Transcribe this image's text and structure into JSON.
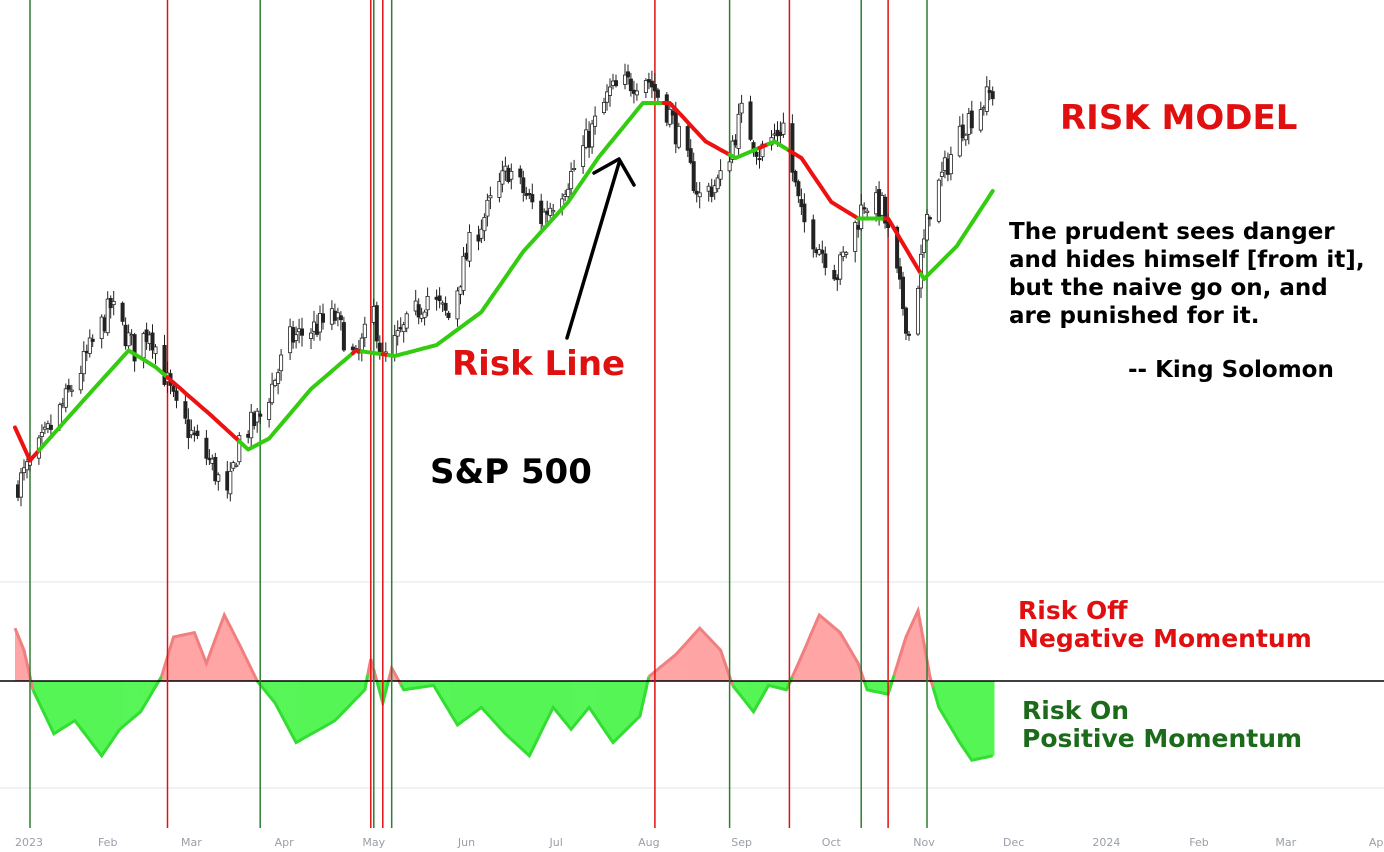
{
  "colors": {
    "signal_on": "#2e7d32",
    "signal_off": "#e01010",
    "risk_line_up": "#33cc11",
    "risk_line_down": "#ee1111",
    "momentum_positive": "#55f555",
    "momentum_negative": "#ffa5a5",
    "text_red": "#e01010",
    "text_green": "#1b6b1b",
    "text_black": "#000000"
  },
  "annotations": {
    "title": "RISK MODEL",
    "risk_line_label": "Risk Line",
    "index_label": "S&P 500",
    "quote_lines": [
      "The prudent sees danger",
      "and hides himself [from it],",
      "but the naive go on, and",
      "are punished for it."
    ],
    "quote_attribution": "-- King Solomon",
    "risk_off_lines": [
      "Risk Off",
      "Negative Momentum"
    ],
    "risk_on_lines": [
      "Risk On",
      "Positive Momentum"
    ]
  },
  "chart_data": {
    "type": "candlestick",
    "title": "RISK MODEL",
    "series_name": "S&P 500",
    "overlay_name": "Risk Line",
    "x_axis": {
      "start": "2023-01-01",
      "end": "2024-04-01",
      "tick_labels": [
        "2023",
        "Feb",
        "Mar",
        "Apr",
        "May",
        "Jun",
        "Jul",
        "Aug",
        "Sep",
        "Oct",
        "Nov",
        "Dec",
        "2024",
        "Feb",
        "Mar",
        "Apr"
      ],
      "tick_dates": [
        "2023-01-01",
        "2023-02-01",
        "2023-03-01",
        "2023-04-01",
        "2023-05-01",
        "2023-06-01",
        "2023-07-01",
        "2023-08-01",
        "2023-09-01",
        "2023-10-01",
        "2023-11-01",
        "2023-12-01",
        "2024-01-01",
        "2024-02-01",
        "2024-03-01",
        "2024-04-01"
      ]
    },
    "y_range_approx": [
      3750,
      4660
    ],
    "data_end": "2023-11-24",
    "price_anchors": [
      [
        "2023-01-01",
        3840
      ],
      [
        "2023-01-06",
        3880
      ],
      [
        "2023-01-18",
        4000
      ],
      [
        "2023-02-02",
        4170
      ],
      [
        "2023-02-10",
        4090
      ],
      [
        "2023-02-15",
        4130
      ],
      [
        "2023-02-24",
        3980
      ],
      [
        "2023-03-08",
        3880
      ],
      [
        "2023-03-13",
        3820
      ],
      [
        "2023-03-17",
        3930
      ],
      [
        "2023-03-24",
        3970
      ],
      [
        "2023-04-03",
        4110
      ],
      [
        "2023-04-18",
        4150
      ],
      [
        "2023-04-25",
        4070
      ],
      [
        "2023-05-01",
        4160
      ],
      [
        "2023-05-04",
        4070
      ],
      [
        "2023-05-19",
        4190
      ],
      [
        "2023-05-26",
        4150
      ],
      [
        "2023-06-02",
        4280
      ],
      [
        "2023-06-15",
        4420
      ],
      [
        "2023-06-26",
        4330
      ],
      [
        "2023-07-06",
        4410
      ],
      [
        "2023-07-19",
        4560
      ],
      [
        "2023-07-31",
        4590
      ],
      [
        "2023-08-08",
        4520
      ],
      [
        "2023-08-18",
        4370
      ],
      [
        "2023-08-25",
        4400
      ],
      [
        "2023-09-01",
        4520
      ],
      [
        "2023-09-07",
        4450
      ],
      [
        "2023-09-15",
        4500
      ],
      [
        "2023-09-21",
        4330
      ],
      [
        "2023-10-03",
        4230
      ],
      [
        "2023-10-12",
        4360
      ],
      [
        "2023-10-18",
        4350
      ],
      [
        "2023-10-27",
        4120
      ],
      [
        "2023-11-03",
        4350
      ],
      [
        "2023-11-14",
        4500
      ],
      [
        "2023-11-24",
        4560
      ]
    ],
    "risk_line_anchors": [
      [
        "2023-01-01",
        3950
      ],
      [
        "2023-01-06",
        3890
      ],
      [
        "2023-01-24",
        4000
      ],
      [
        "2023-02-08",
        4090
      ],
      [
        "2023-02-17",
        4060
      ],
      [
        "2023-03-08",
        3970
      ],
      [
        "2023-03-20",
        3910
      ],
      [
        "2023-03-27",
        3930
      ],
      [
        "2023-04-10",
        4020
      ],
      [
        "2023-04-25",
        4090
      ],
      [
        "2023-05-08",
        4080
      ],
      [
        "2023-05-22",
        4100
      ],
      [
        "2023-06-06",
        4160
      ],
      [
        "2023-06-20",
        4270
      ],
      [
        "2023-07-05",
        4360
      ],
      [
        "2023-07-15",
        4440
      ],
      [
        "2023-07-30",
        4540
      ],
      [
        "2023-08-08",
        4540
      ],
      [
        "2023-08-20",
        4470
      ],
      [
        "2023-08-30",
        4440
      ],
      [
        "2023-09-12",
        4470
      ],
      [
        "2023-09-21",
        4440
      ],
      [
        "2023-10-01",
        4360
      ],
      [
        "2023-10-10",
        4330
      ],
      [
        "2023-10-20",
        4330
      ],
      [
        "2023-11-01",
        4220
      ],
      [
        "2023-11-12",
        4280
      ],
      [
        "2023-11-24",
        4380
      ]
    ],
    "momentum_anchors": [
      [
        "2023-01-01",
        0.6
      ],
      [
        "2023-01-04",
        0.35
      ],
      [
        "2023-01-07",
        -0.1
      ],
      [
        "2023-01-14",
        -0.6
      ],
      [
        "2023-01-21",
        -0.45
      ],
      [
        "2023-01-30",
        -0.85
      ],
      [
        "2023-02-05",
        -0.55
      ],
      [
        "2023-02-12",
        -0.35
      ],
      [
        "2023-02-19",
        0.05
      ],
      [
        "2023-02-23",
        0.5
      ],
      [
        "2023-03-02",
        0.55
      ],
      [
        "2023-03-06",
        0.2
      ],
      [
        "2023-03-12",
        0.75
      ],
      [
        "2023-03-18",
        0.35
      ],
      [
        "2023-03-23",
        0.0
      ],
      [
        "2023-03-29",
        -0.25
      ],
      [
        "2023-04-05",
        -0.7
      ],
      [
        "2023-04-18",
        -0.45
      ],
      [
        "2023-04-28",
        -0.1
      ],
      [
        "2023-04-30",
        0.25
      ],
      [
        "2023-05-04",
        -0.25
      ],
      [
        "2023-05-07",
        0.15
      ],
      [
        "2023-05-11",
        -0.1
      ],
      [
        "2023-05-21",
        -0.05
      ],
      [
        "2023-05-29",
        -0.5
      ],
      [
        "2023-06-06",
        -0.3
      ],
      [
        "2023-06-14",
        -0.6
      ],
      [
        "2023-06-22",
        -0.85
      ],
      [
        "2023-06-30",
        -0.3
      ],
      [
        "2023-07-06",
        -0.55
      ],
      [
        "2023-07-12",
        -0.3
      ],
      [
        "2023-07-20",
        -0.7
      ],
      [
        "2023-07-29",
        -0.4
      ],
      [
        "2023-08-01",
        0.05
      ],
      [
        "2023-08-10",
        0.3
      ],
      [
        "2023-08-18",
        0.6
      ],
      [
        "2023-08-25",
        0.35
      ],
      [
        "2023-08-29",
        -0.05
      ],
      [
        "2023-09-05",
        -0.35
      ],
      [
        "2023-09-10",
        -0.05
      ],
      [
        "2023-09-16",
        -0.1
      ],
      [
        "2023-09-20",
        0.2
      ],
      [
        "2023-09-27",
        0.75
      ],
      [
        "2023-10-04",
        0.55
      ],
      [
        "2023-10-10",
        0.2
      ],
      [
        "2023-10-13",
        -0.1
      ],
      [
        "2023-10-20",
        -0.15
      ],
      [
        "2023-10-26",
        0.5
      ],
      [
        "2023-10-30",
        0.8
      ],
      [
        "2023-11-03",
        0.05
      ],
      [
        "2023-11-06",
        -0.3
      ],
      [
        "2023-11-13",
        -0.7
      ],
      [
        "2023-11-17",
        -0.9
      ],
      [
        "2023-11-24",
        -0.85
      ]
    ],
    "signals": [
      {
        "date": "2023-01-06",
        "type": "risk-on"
      },
      {
        "date": "2023-02-21",
        "type": "risk-off"
      },
      {
        "date": "2023-03-24",
        "type": "risk-on"
      },
      {
        "date": "2023-04-30",
        "type": "risk-off"
      },
      {
        "date": "2023-05-01",
        "type": "risk-on"
      },
      {
        "date": "2023-05-04",
        "type": "risk-off"
      },
      {
        "date": "2023-05-07",
        "type": "risk-on"
      },
      {
        "date": "2023-08-03",
        "type": "risk-off"
      },
      {
        "date": "2023-08-28",
        "type": "risk-on"
      },
      {
        "date": "2023-09-17",
        "type": "risk-off"
      },
      {
        "date": "2023-10-11",
        "type": "risk-on"
      },
      {
        "date": "2023-10-20",
        "type": "risk-off"
      },
      {
        "date": "2023-11-02",
        "type": "risk-on"
      }
    ]
  }
}
